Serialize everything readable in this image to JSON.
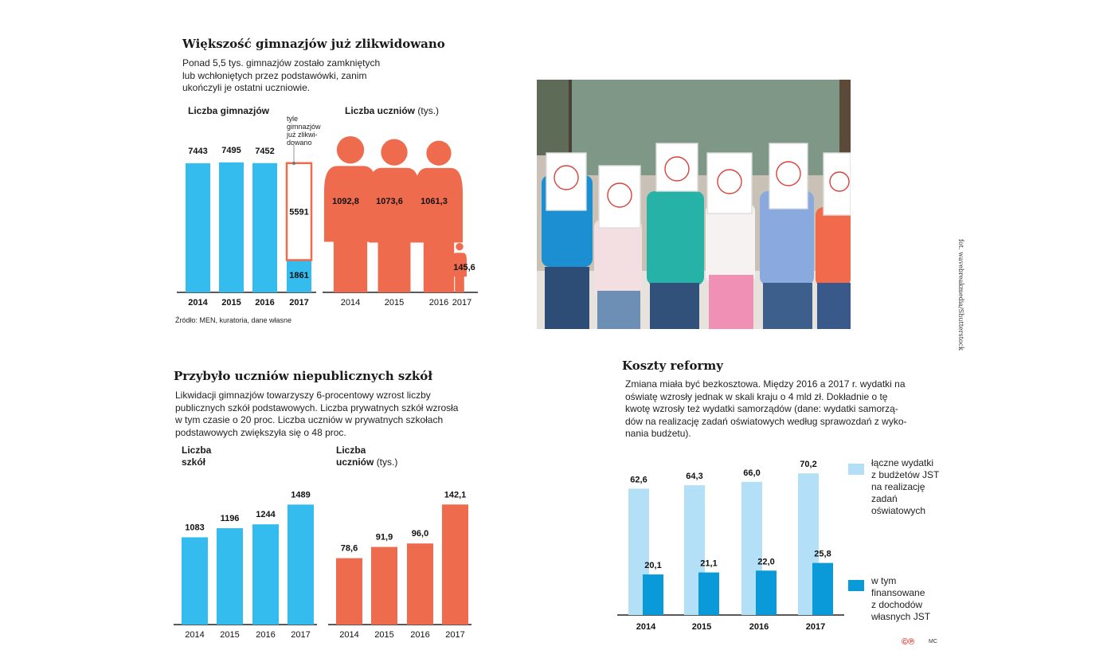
{
  "colors": {
    "blue": "#33bced",
    "orange": "#ee6b4d",
    "light_blue": "#b3e0f6",
    "dark_blue": "#0a9ad9",
    "axis": "#222222"
  },
  "section1": {
    "title": "Większość gimnazjów już zlikwidowano",
    "lead": [
      "Ponad 5,5 tys. gimnazjów zostało zamkniętych",
      "lub wchłoniętych przez podstawówki, zanim",
      "ukończyli je ostatni uczniowie."
    ],
    "source": "Źródło:  MEN, kuratoria, dane własne"
  },
  "section2": {
    "title": "Przybyło uczniów niepublicznych szkół",
    "lead": [
      "Likwidacji gimnazjów towarzyszy 6-procentowy wzrost liczby",
      "publicznych szkół podstawowych. Liczba prywatnych szkół wzrosła",
      "w tym czasie o 20 proc. Liczba uczniów w prywatnych szkołach",
      "podstawowych zwiększyła się o 48 proc."
    ]
  },
  "section3": {
    "title": "Koszty reformy",
    "lead": [
      "Zmiana miała być bezkosztowa. Między 2016 a 2017 r. wydatki na",
      "oświatę wzrosły jednak w skali kraju o 4 mld zł. Dokładnie o tę",
      "kwotę wzrosły też wydatki samorządów (dane: wydatki samorzą-",
      "dów na realizację zadań oświatowych według sprawozdań z wyko-",
      "nania budżetu)."
    ],
    "footer_logo": "©℗",
    "footer_initials": "MC"
  },
  "photo": {
    "credit": "fot. wavebreakmedia/Shutterstock"
  },
  "chart_data": [
    {
      "id": "gimnazja",
      "type": "bar",
      "title": "Liczba gimnazjów",
      "categories": [
        "2014",
        "2015",
        "2016",
        "2017"
      ],
      "values": [
        7443,
        7495,
        7452,
        1861
      ],
      "value_labels": [
        "7443",
        "7495",
        "7452",
        "1861"
      ],
      "liquidated": {
        "value": 5591,
        "label": "5591",
        "annotation": [
          "tyle",
          "gimnazjów",
          "już zlikwi-",
          "dowano"
        ]
      },
      "ylim": [
        0,
        7900
      ]
    },
    {
      "id": "uczniowie_gim",
      "type": "bar",
      "title": "Liczba uczniów",
      "unit": "(tys.)",
      "categories": [
        "2014",
        "2015",
        "2016",
        "2017"
      ],
      "values": [
        1092.8,
        1073.6,
        1061.3,
        145.6
      ],
      "value_labels": [
        "1092,8",
        "1073,6",
        "1061,3",
        "145,6"
      ]
    },
    {
      "id": "szkoly_prywatne",
      "type": "bar",
      "title": [
        "Liczba",
        "szkół"
      ],
      "categories": [
        "2014",
        "2015",
        "2016",
        "2017"
      ],
      "values": [
        1083,
        1196,
        1244,
        1489
      ],
      "value_labels": [
        "1083",
        "1196",
        "1244",
        "1489"
      ],
      "ylim": [
        0,
        1730
      ]
    },
    {
      "id": "uczniowie_prywatne",
      "type": "bar",
      "title": [
        "Liczba",
        "uczniów"
      ],
      "unit": "(tys.)",
      "categories": [
        "2014",
        "2015",
        "2016",
        "2017"
      ],
      "values": [
        78.6,
        91.9,
        96.0,
        142.1
      ],
      "value_labels": [
        "78,6",
        "91,9",
        "96,0",
        "142,1"
      ],
      "ylim": [
        0,
        165
      ]
    },
    {
      "id": "koszty",
      "type": "bar",
      "categories": [
        "2014",
        "2015",
        "2016",
        "2017"
      ],
      "series": [
        {
          "name": "łączne wydatki z budżetów JST na realizację zadań oświatowych",
          "values": [
            62.6,
            64.3,
            66.0,
            70.2
          ],
          "value_labels": [
            "62,6",
            "64,3",
            "66,0",
            "70,2"
          ]
        },
        {
          "name": "w tym finansowane z dochodów własnych JST",
          "values": [
            20.1,
            21.1,
            22.0,
            25.8
          ],
          "value_labels": [
            "20,1",
            "21,1",
            "22,0",
            "25,8"
          ]
        }
      ],
      "legend": [
        [
          "łączne wydatki",
          "z budżetów JST",
          "na realizację",
          "zadań",
          "oświatowych"
        ],
        [
          "w tym",
          "finansowane",
          "z dochodów",
          "własnych JST"
        ]
      ],
      "ylim": [
        0,
        75
      ]
    }
  ]
}
